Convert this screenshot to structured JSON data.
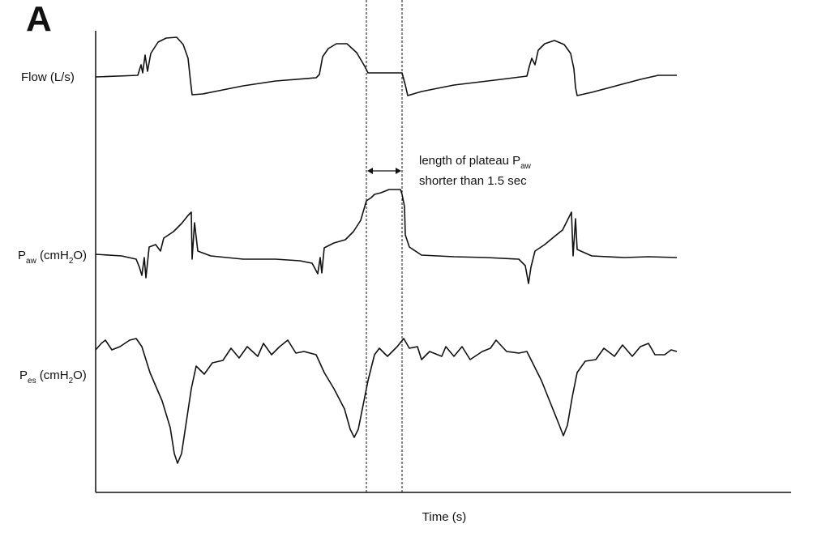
{
  "panel_label": "A",
  "traces": [
    {
      "label": {
        "base": "Flow (L/s)"
      }
    },
    {
      "label": {
        "base": "P",
        "sub": "aw",
        "unit_pre": " (cmH",
        "unit_sub": "2",
        "unit_post": "O)"
      }
    },
    {
      "label": {
        "base": "P",
        "sub": "es",
        "unit_pre": " (cmH",
        "unit_sub": "2",
        "unit_post": "O)"
      }
    }
  ],
  "annotation": {
    "line1": {
      "base": "length of plateau P",
      "sub": "aw"
    },
    "line2": "shorter than 1.5 sec"
  },
  "x_axis_label": "Time (s)"
}
